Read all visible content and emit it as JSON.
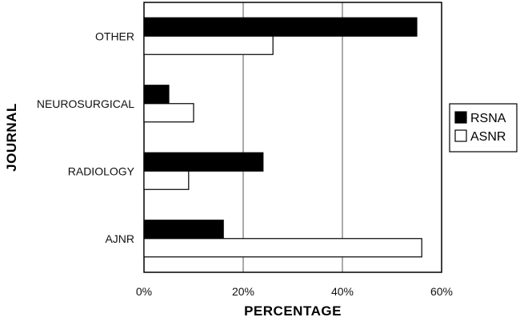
{
  "chart_data": {
    "type": "bar",
    "orientation": "horizontal",
    "categories": [
      "OTHER",
      "NEUROSURGICAL",
      "RADIOLOGY",
      "AJNR"
    ],
    "series": [
      {
        "name": "RSNA",
        "color": "#000000",
        "values": [
          55,
          5,
          24,
          16
        ]
      },
      {
        "name": "ASNR",
        "color": "#ffffff",
        "values": [
          26,
          10,
          9,
          56
        ]
      }
    ],
    "xlabel": "PERCENTAGE",
    "ylabel": "JOURNAL",
    "xlim": [
      0,
      60
    ],
    "xticks": [
      0,
      20,
      40,
      60
    ],
    "xtick_labels": [
      "0%",
      "20%",
      "40%",
      "60%"
    ],
    "grid": "vertical",
    "legend_position": "right"
  }
}
